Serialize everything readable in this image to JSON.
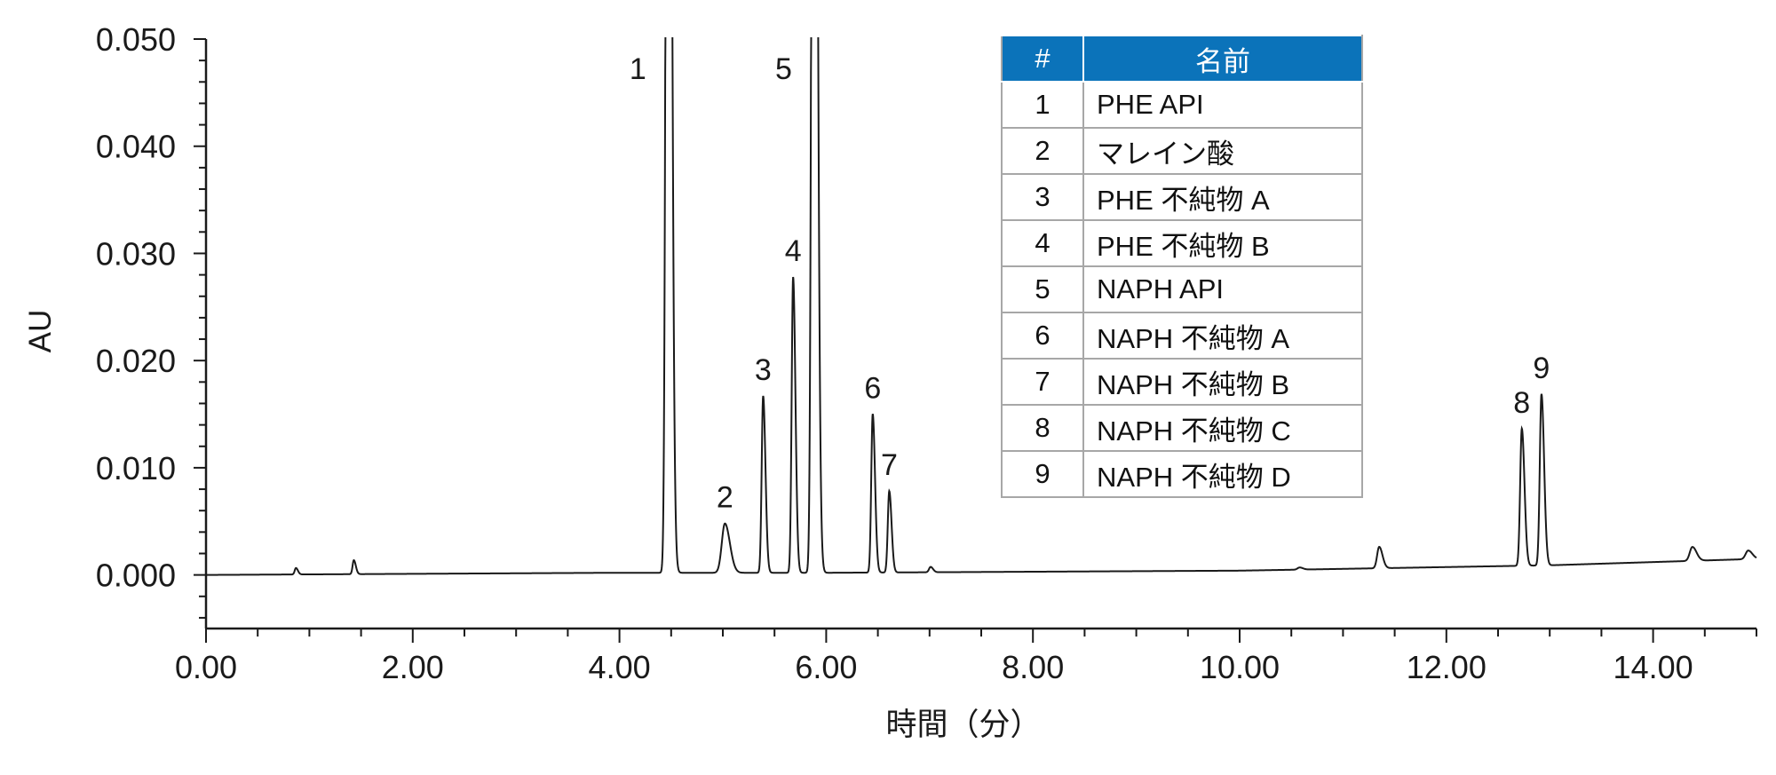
{
  "chart_data": {
    "type": "line",
    "xlabel": "時間（分）",
    "ylabel": "AU",
    "xlim": [
      0,
      15
    ],
    "ylim": [
      -0.005,
      0.05
    ],
    "x_ticks": [
      "0.00",
      "2.00",
      "4.00",
      "6.00",
      "8.00",
      "10.00",
      "12.00",
      "14.00"
    ],
    "y_ticks": [
      "0.000",
      "0.010",
      "0.020",
      "0.030",
      "0.040",
      "0.050"
    ],
    "grid": false,
    "baseline": [
      [
        0,
        0.0
      ],
      [
        3.9,
        0.0002
      ],
      [
        6,
        0.0002
      ],
      [
        10,
        0.0004
      ],
      [
        13,
        0.0009
      ],
      [
        15,
        0.0015
      ]
    ],
    "peaks": [
      {
        "label": "",
        "rt": 0.87,
        "height": 0.0006,
        "width": 0.012
      },
      {
        "label": "",
        "rt": 1.43,
        "height": 0.0013,
        "width": 0.012
      },
      {
        "label": "1",
        "rt": 4.47,
        "height": 0.15,
        "width": 0.018
      },
      {
        "label": "2",
        "rt": 5.02,
        "height": 0.0046,
        "width": 0.03
      },
      {
        "label": "3",
        "rt": 5.39,
        "height": 0.0165,
        "width": 0.014
      },
      {
        "label": "4",
        "rt": 5.68,
        "height": 0.0276,
        "width": 0.014
      },
      {
        "label": "5",
        "rt": 5.88,
        "height": 0.15,
        "width": 0.018
      },
      {
        "label": "6",
        "rt": 6.45,
        "height": 0.0148,
        "width": 0.014
      },
      {
        "label": "7",
        "rt": 6.61,
        "height": 0.0076,
        "width": 0.014
      },
      {
        "label": "",
        "rt": 7.01,
        "height": 0.0005,
        "width": 0.015
      },
      {
        "label": "",
        "rt": 10.58,
        "height": 0.0002,
        "width": 0.02
      },
      {
        "label": "",
        "rt": 11.35,
        "height": 0.002,
        "width": 0.02
      },
      {
        "label": "8",
        "rt": 12.73,
        "height": 0.0128,
        "width": 0.016
      },
      {
        "label": "9",
        "rt": 12.92,
        "height": 0.016,
        "width": 0.016
      },
      {
        "label": "",
        "rt": 14.38,
        "height": 0.0013,
        "width": 0.025
      },
      {
        "label": "",
        "rt": 14.92,
        "height": 0.0008,
        "width": 0.025
      }
    ]
  },
  "legend_table": {
    "header": {
      "num": "#",
      "name": "名前"
    },
    "rows": [
      {
        "num": "1",
        "name": "PHE API"
      },
      {
        "num": "2",
        "name": "マレイン酸"
      },
      {
        "num": "3",
        "name": "PHE 不純物 A"
      },
      {
        "num": "4",
        "name": "PHE 不純物 B"
      },
      {
        "num": "5",
        "name": "NAPH API"
      },
      {
        "num": "6",
        "name": "NAPH 不純物 A"
      },
      {
        "num": "7",
        "name": "NAPH 不純物 B"
      },
      {
        "num": "8",
        "name": "NAPH 不純物 C"
      },
      {
        "num": "9",
        "name": "NAPH 不純物 D"
      }
    ]
  },
  "colors": {
    "header_bg": "#0b73ba",
    "trace": "#1a1a1a",
    "border": "#a7a7a7"
  }
}
